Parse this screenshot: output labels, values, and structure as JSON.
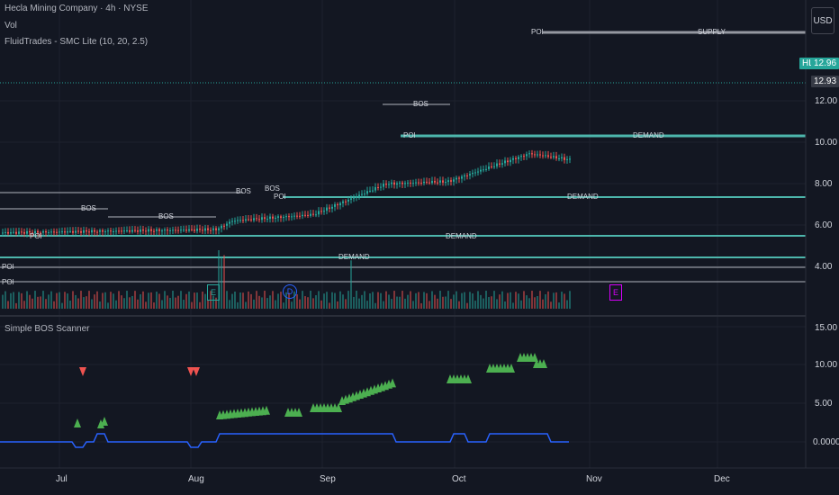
{
  "header": {
    "title": "Hecla Mining Company · 4h · NYSE",
    "vol_label": "Vol",
    "indicator_label": "FluidTrades - SMC Lite (10, 20, 2.5)",
    "currency": "USD"
  },
  "price_labels": {
    "hl_tag": "HL",
    "hl_value": "12.96",
    "last_value": "12.93"
  },
  "y_axis_top": [
    "12.00",
    "10.00",
    "8.00",
    "6.00",
    "4.00"
  ],
  "y_axis_bottom": [
    "15.00",
    "10.00",
    "5.00",
    "0.0000"
  ],
  "x_axis": [
    "Jul",
    "Aug",
    "Sep",
    "Oct",
    "Nov",
    "Dec"
  ],
  "panel2_title": "Simple BOS Scanner",
  "zone_labels": {
    "supply": "SUPPLY",
    "demand": "DEMAND",
    "poi": "POI",
    "bos": "BOS"
  },
  "event_markers": [
    "E",
    "D",
    "E"
  ],
  "colors": {
    "background": "#131722",
    "up": "#26a69a",
    "down": "#ef5350",
    "supply_line": "#9598a1",
    "demand_line": "#4db6ac",
    "scanner_green": "#4caf50",
    "scanner_red": "#ef5350",
    "scanner_line": "#2962ff",
    "earnings_purple": "#d500f9"
  }
}
